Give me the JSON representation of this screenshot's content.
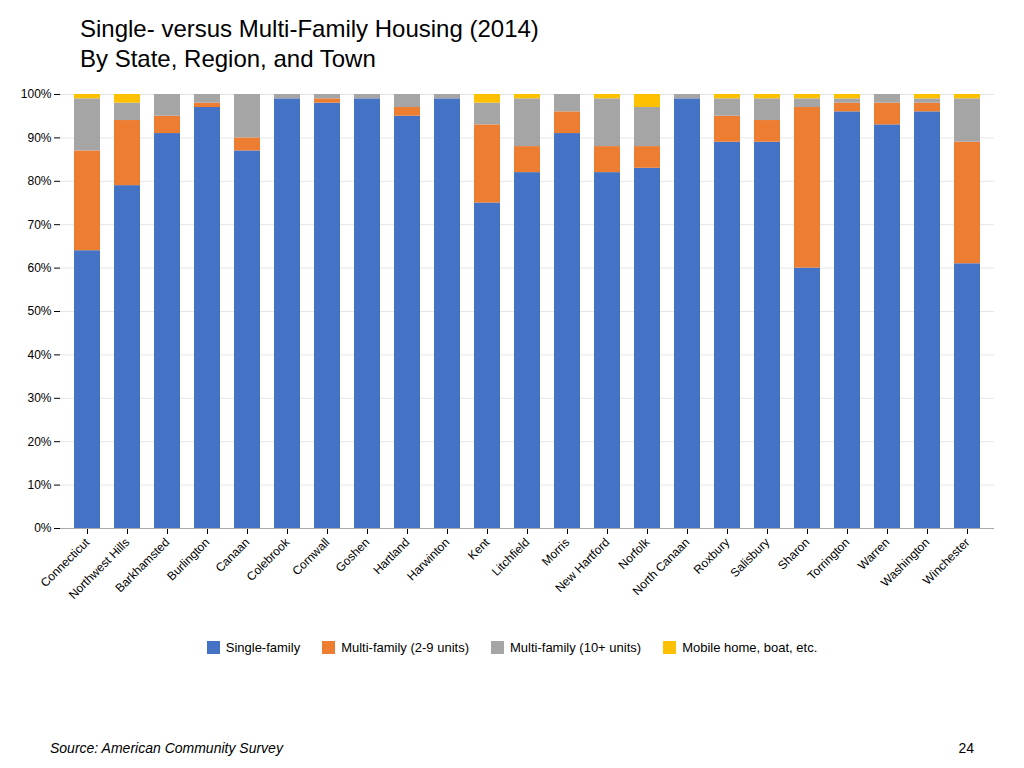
{
  "chart_data": {
    "type": "bar",
    "stacked": true,
    "title": "Single- versus Multi-Family Housing (2014)\nBy State, Region, and Town",
    "categories": [
      "Connecticut",
      "Northwest Hills",
      "Barkhamsted",
      "Burlington",
      "Canaan",
      "Colebrook",
      "Cornwall",
      "Goshen",
      "Hartland",
      "Harwinton",
      "Kent",
      "Litchfield",
      "Morris",
      "New Hartford",
      "Norfolk",
      "North Canaan",
      "Roxbury",
      "Salisbury",
      "Sharon",
      "Torrington",
      "Warren",
      "Washington",
      "Winchester"
    ],
    "series": [
      {
        "name": "Single-family",
        "color": "#4472C4",
        "values": [
          64,
          79,
          91,
          97,
          87,
          99,
          98,
          99,
          95,
          99,
          75,
          82,
          91,
          82,
          83,
          99,
          89,
          89,
          60,
          96,
          93,
          96,
          61
        ]
      },
      {
        "name": "Multi-family (2-9 units)",
        "color": "#ED7D31",
        "values": [
          23,
          15,
          4,
          1,
          3,
          0,
          1,
          0,
          2,
          0,
          18,
          6,
          5,
          6,
          5,
          0,
          6,
          5,
          37,
          2,
          5,
          2,
          28
        ]
      },
      {
        "name": "Multi-family (10+ units)",
        "color": "#A5A5A5",
        "values": [
          12,
          4,
          5,
          2,
          10,
          1,
          1,
          1,
          3,
          1,
          5,
          11,
          4,
          11,
          9,
          1,
          4,
          5,
          2,
          1,
          2,
          1,
          10
        ]
      },
      {
        "name": "Mobile home, boat, etc.",
        "color": "#FFC000",
        "values": [
          1,
          2,
          0,
          0,
          0,
          0,
          0,
          0,
          0,
          0,
          2,
          1,
          0,
          1,
          3,
          0,
          1,
          1,
          1,
          1,
          0,
          1,
          1
        ]
      }
    ],
    "ylim": [
      0,
      100
    ],
    "yticks": [
      {
        "value": 0,
        "label": "0%"
      },
      {
        "value": 10,
        "label": "10%"
      },
      {
        "value": 20,
        "label": "20%"
      },
      {
        "value": 30,
        "label": "30%"
      },
      {
        "value": 40,
        "label": "40%"
      },
      {
        "value": 50,
        "label": "50%"
      },
      {
        "value": 60,
        "label": "60%"
      },
      {
        "value": 70,
        "label": "70%"
      },
      {
        "value": 80,
        "label": "80%"
      },
      {
        "value": 90,
        "label": "90%"
      },
      {
        "value": 100,
        "label": "100%"
      }
    ],
    "grid": true,
    "legend": "bottom",
    "annotations": [
      "Source: American Community Survey",
      "24"
    ]
  }
}
